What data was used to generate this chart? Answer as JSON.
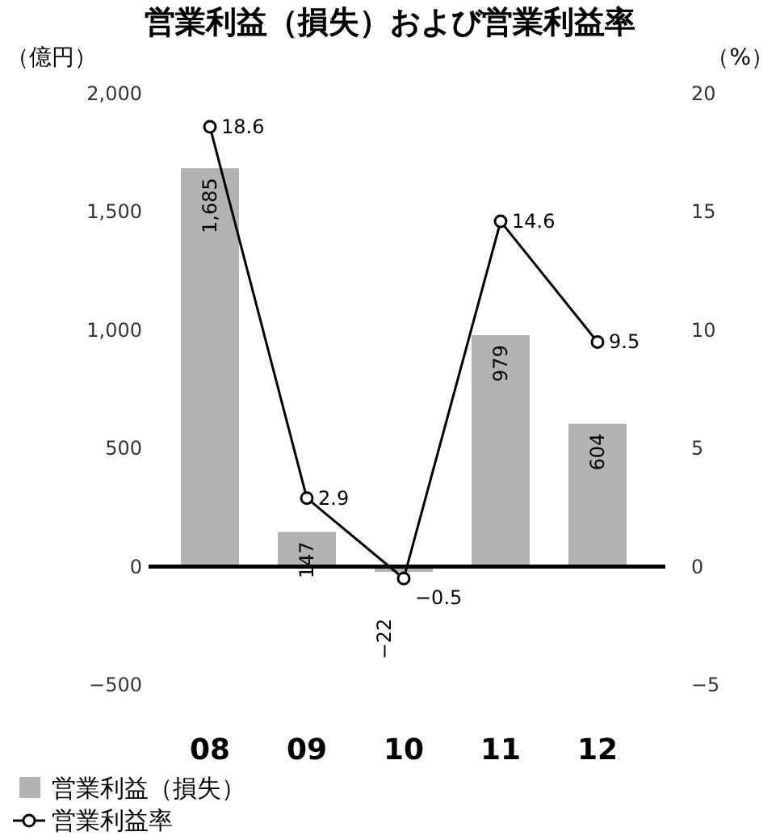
{
  "chart_data": {
    "type": "bar",
    "title": "営業利益（損失）および営業利益率",
    "ylabel": "（億円）",
    "y2label": "（%）",
    "categories": [
      "08",
      "09",
      "10",
      "11",
      "12"
    ],
    "series": [
      {
        "name": "営業利益（損失）",
        "color": "#b3b3b3",
        "values": [
          1685,
          147,
          -22,
          979,
          604
        ],
        "value_labels": [
          "1,685",
          "147",
          "−22",
          "979",
          "604"
        ]
      },
      {
        "name": "営業利益率",
        "type": "line",
        "axis": "y2",
        "color": "#000000",
        "marker": "circle",
        "values": [
          18.6,
          2.9,
          -0.5,
          14.6,
          9.5
        ],
        "value_labels": [
          "18.6",
          "2.9",
          "−0.5",
          "14.6",
          "9.5"
        ]
      }
    ],
    "ylim": [
      -500,
      2000
    ],
    "yticks": [
      {
        "value": -500,
        "label": "−500"
      },
      0,
      500,
      {
        "value": 1000,
        "label": "1,000"
      },
      {
        "value": 1500,
        "label": "1,500"
      },
      {
        "value": 2000,
        "label": "2,000"
      }
    ],
    "y2lim": [
      -5,
      20
    ],
    "y2ticks": [
      {
        "value": -5,
        "label": "−5"
      },
      0,
      5,
      10,
      15,
      20
    ],
    "ref_lines": [
      {
        "axis": "y",
        "value": 0,
        "color": "#000000"
      }
    ],
    "legend": "bottom left"
  }
}
